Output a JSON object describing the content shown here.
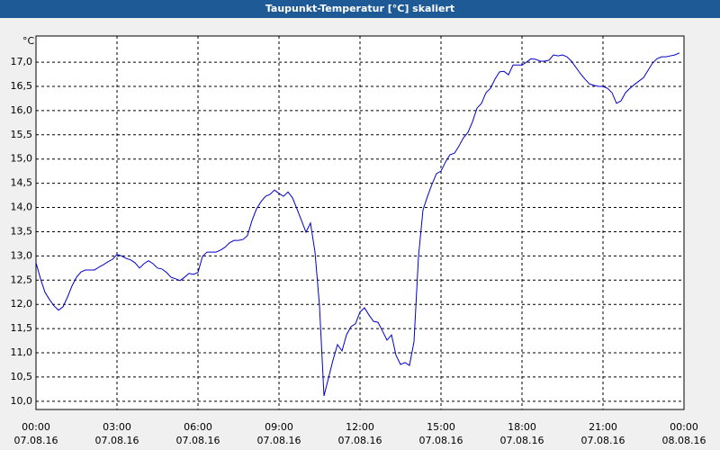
{
  "chart_data": {
    "type": "line",
    "title": "Taupunkt-Temperatur [°C] skaliert",
    "y_unit": "°C",
    "x": [
      0,
      10,
      20,
      30,
      40,
      50,
      60,
      70,
      80,
      90,
      100,
      110,
      120,
      130,
      140,
      150,
      160,
      170,
      180,
      190,
      200,
      210,
      220,
      230,
      240,
      250,
      260,
      270,
      280,
      290,
      300,
      310,
      320,
      330,
      340,
      350,
      360,
      370,
      380,
      390,
      400,
      410,
      420,
      430,
      440,
      450,
      460,
      470,
      480,
      490,
      500,
      510,
      520,
      530,
      540,
      550,
      560,
      570,
      580,
      590,
      600,
      610,
      620,
      630,
      640,
      650,
      660,
      670,
      680,
      690,
      700,
      710,
      720,
      730,
      740,
      750,
      760,
      770,
      780,
      790,
      800,
      810,
      820,
      830,
      840,
      850,
      860,
      870,
      880,
      890,
      900,
      910,
      920,
      930,
      940,
      950,
      960,
      970,
      980,
      990,
      1000,
      1010,
      1020,
      1030,
      1040,
      1050,
      1060,
      1070,
      1080,
      1090,
      1100,
      1110,
      1120,
      1130,
      1140,
      1150,
      1160,
      1170,
      1180,
      1190,
      1200,
      1210,
      1220,
      1230,
      1240,
      1250,
      1260,
      1270,
      1280,
      1290,
      1300,
      1310,
      1320,
      1330,
      1340,
      1350,
      1360,
      1370,
      1380,
      1390,
      1400,
      1410,
      1420,
      1430
    ],
    "series": [
      {
        "color": "#0000cc",
        "values": [
          12.86,
          12.53,
          12.25,
          12.1,
          11.97,
          11.88,
          11.95,
          12.15,
          12.38,
          12.56,
          12.67,
          12.71,
          12.71,
          12.71,
          12.77,
          12.82,
          12.88,
          12.93,
          13.03,
          13.0,
          12.95,
          12.92,
          12.86,
          12.75,
          12.84,
          12.9,
          12.84,
          12.75,
          12.73,
          12.66,
          12.56,
          12.53,
          12.49,
          12.56,
          12.64,
          12.62,
          12.66,
          12.99,
          13.08,
          13.08,
          13.08,
          13.12,
          13.18,
          13.27,
          13.32,
          13.32,
          13.34,
          13.42,
          13.73,
          13.97,
          14.12,
          14.23,
          14.27,
          14.36,
          14.29,
          14.23,
          14.32,
          14.2,
          13.97,
          13.73,
          13.49,
          13.68,
          13.08,
          11.97,
          10.11,
          10.48,
          10.85,
          11.17,
          11.04,
          11.37,
          11.54,
          11.6,
          11.84,
          11.93,
          11.78,
          11.65,
          11.63,
          11.45,
          11.26,
          11.37,
          10.95,
          10.76,
          10.8,
          10.74,
          11.23,
          12.99,
          13.95,
          14.23,
          14.48,
          14.7,
          14.75,
          14.94,
          15.09,
          15.12,
          15.27,
          15.44,
          15.55,
          15.77,
          16.05,
          16.15,
          16.37,
          16.46,
          16.65,
          16.8,
          16.81,
          16.74,
          16.94,
          16.94,
          16.94,
          17.0,
          17.07,
          17.06,
          17.02,
          17.02,
          17.04,
          17.15,
          17.13,
          17.15,
          17.11,
          17.02,
          16.89,
          16.76,
          16.65,
          16.55,
          16.52,
          16.5,
          16.5,
          16.46,
          16.37,
          16.15,
          16.2,
          16.37,
          16.46,
          16.54,
          16.61,
          16.68,
          16.83,
          16.98,
          17.07,
          17.11,
          17.11,
          17.13,
          17.15,
          17.19
        ]
      }
    ],
    "xlim": [
      0,
      1440
    ],
    "xticks": [
      {
        "value": 0,
        "label": "00:00",
        "date": "07.08.16"
      },
      {
        "value": 180,
        "label": "03:00",
        "date": "07.08.16"
      },
      {
        "value": 360,
        "label": "06:00",
        "date": "07.08.16"
      },
      {
        "value": 540,
        "label": "09:00",
        "date": "07.08.16"
      },
      {
        "value": 720,
        "label": "12:00",
        "date": "07.08.16"
      },
      {
        "value": 900,
        "label": "15:00",
        "date": "07.08.16"
      },
      {
        "value": 1080,
        "label": "18:00",
        "date": "07.08.16"
      },
      {
        "value": 1260,
        "label": "21:00",
        "date": "07.08.16"
      },
      {
        "value": 1440,
        "label": "00:00",
        "date": "08.08.16"
      }
    ],
    "ylim": [
      9.83,
      17.54
    ],
    "yticks": [
      {
        "value": 10,
        "label": "10,0"
      },
      {
        "value": 10.5,
        "label": "10,5"
      },
      {
        "value": 11,
        "label": "11,0"
      },
      {
        "value": 11.5,
        "label": "11,5"
      },
      {
        "value": 12,
        "label": "12,0"
      },
      {
        "value": 12.5,
        "label": "12,5"
      },
      {
        "value": 13,
        "label": "13,0"
      },
      {
        "value": 13.5,
        "label": "13,5"
      },
      {
        "value": 14,
        "label": "14,0"
      },
      {
        "value": 14.5,
        "label": "14,5"
      },
      {
        "value": 15,
        "label": "15,0"
      },
      {
        "value": 15.5,
        "label": "15,5"
      },
      {
        "value": 16,
        "label": "16,0"
      },
      {
        "value": 16.5,
        "label": "16,5"
      },
      {
        "value": 17,
        "label": "17,0"
      }
    ],
    "grid": true
  }
}
